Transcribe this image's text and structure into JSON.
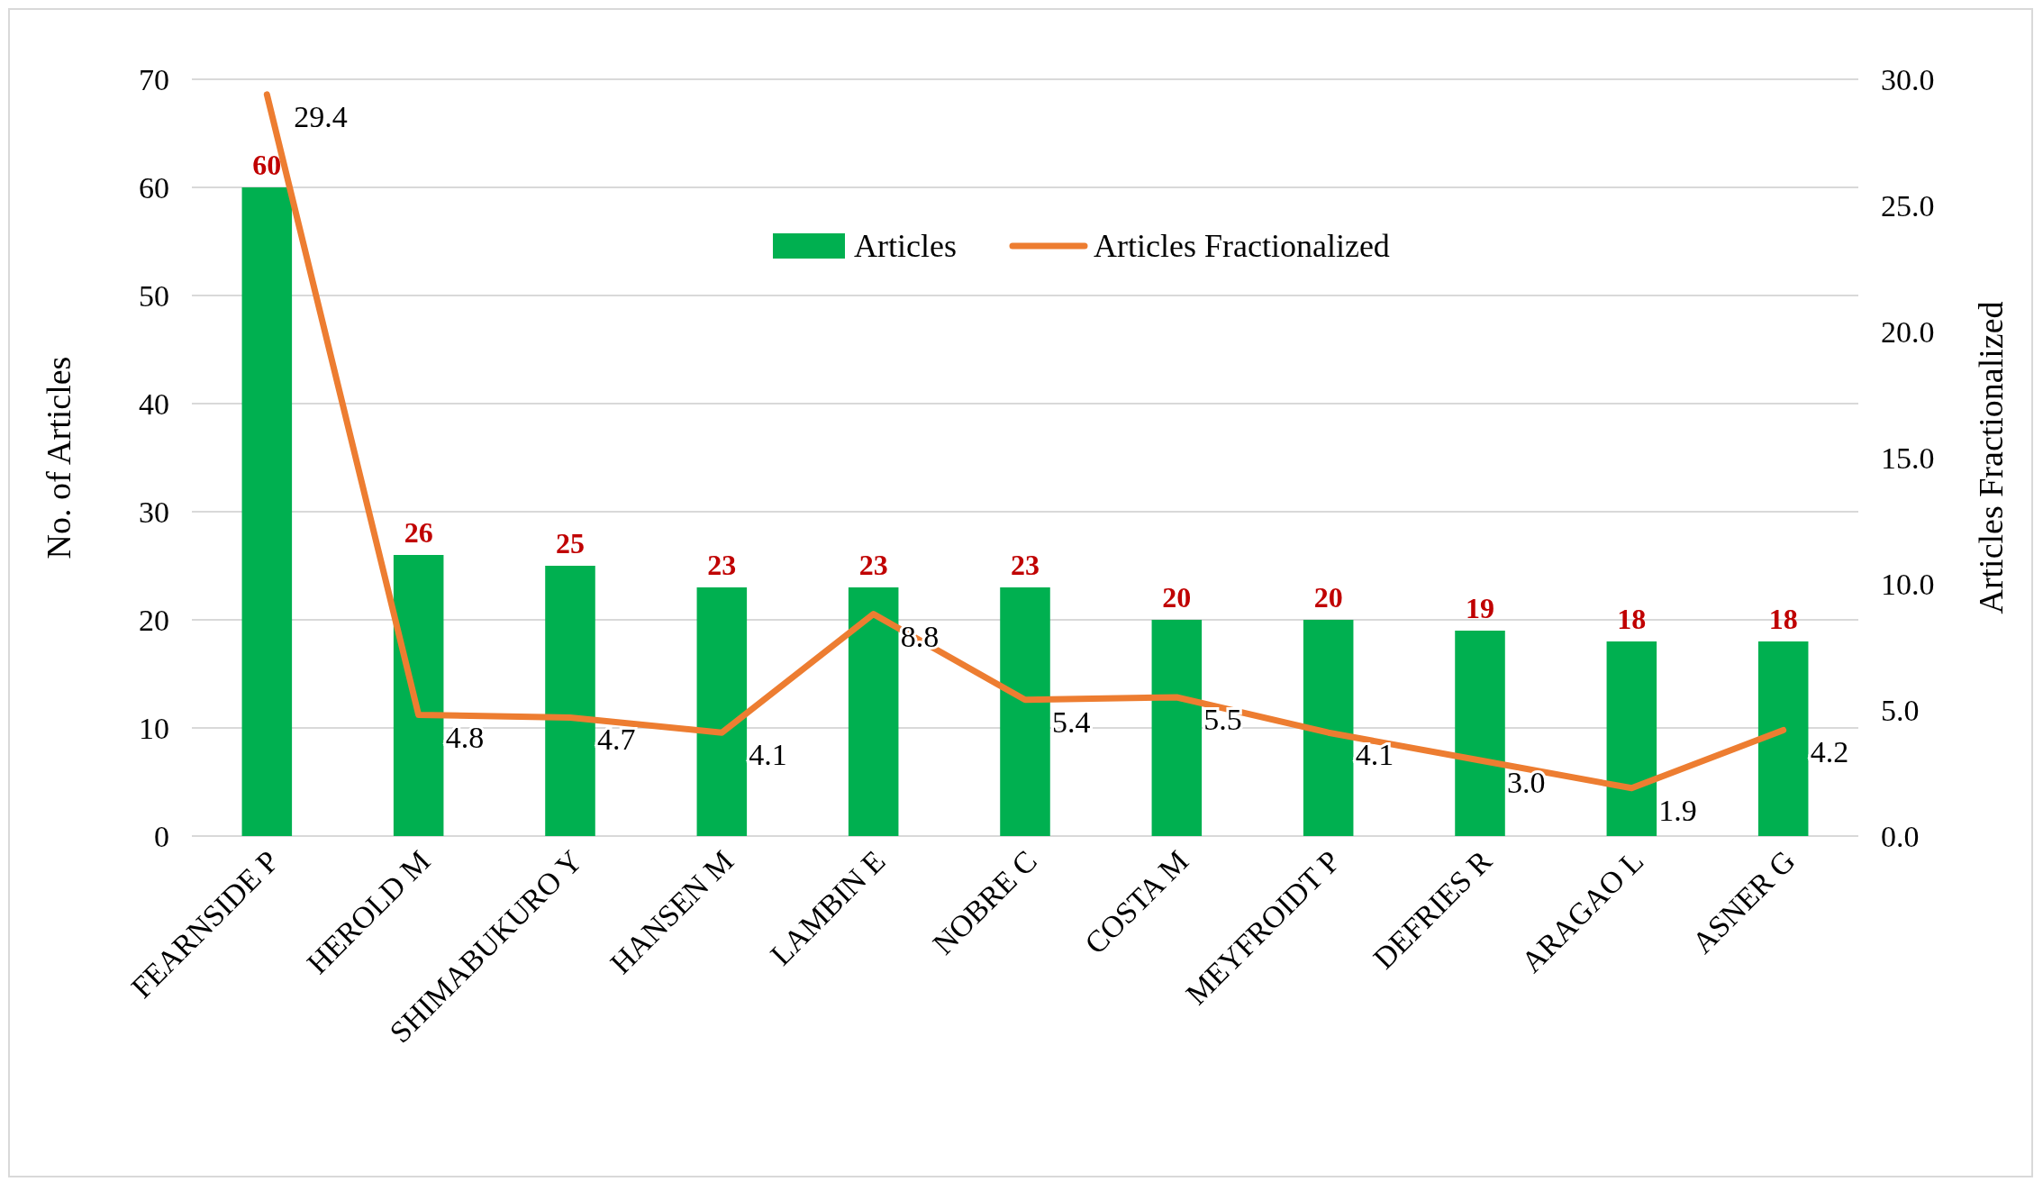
{
  "chart_data": {
    "type": "bar",
    "ylabel": "No. of Articles",
    "y2label": "Articles Fractionalized",
    "categories": [
      "FEARNSIDE P",
      "HEROLD M",
      "SHIMABUKURO Y",
      "HANSEN M",
      "LAMBIN E",
      "NOBRE C",
      "COSTA M",
      "MEYFROIDT P",
      "DEFRIES R",
      "ARAGAO L",
      "ASNER G"
    ],
    "series": [
      {
        "name": "Articles",
        "color": "#00b050",
        "values": [
          60,
          26,
          25,
          23,
          23,
          23,
          20,
          20,
          19,
          18,
          18
        ]
      },
      {
        "name": "Articles Fractionalized",
        "type": "line",
        "axis": "y2",
        "color": "#ed7d31",
        "values": [
          29.4,
          4.8,
          4.7,
          4.1,
          8.8,
          5.4,
          5.5,
          4.1,
          3.0,
          1.9,
          4.2
        ],
        "value_labels": [
          "29.4",
          "4.8",
          "4.7",
          "4.1",
          "8.8",
          "5.4",
          "5.5",
          "4.1",
          "3.0",
          "1.9",
          "4.2"
        ]
      }
    ],
    "ylim": [
      0,
      70
    ],
    "yticks": [
      0,
      10,
      20,
      30,
      40,
      50,
      60,
      70
    ],
    "y2lim": [
      0,
      30
    ],
    "y2ticks": [
      {
        "value": 0,
        "label": "0.0"
      },
      {
        "value": 5,
        "label": "5.0"
      },
      {
        "value": 10,
        "label": "10.0"
      },
      {
        "value": 15,
        "label": "15.0"
      },
      {
        "value": 20,
        "label": "20.0"
      },
      {
        "value": 25,
        "label": "25.0"
      },
      {
        "value": 30,
        "label": "30.0"
      }
    ],
    "grid": "y",
    "legend": "top",
    "data_labels": true,
    "marker": "none",
    "line_style": "solid"
  }
}
